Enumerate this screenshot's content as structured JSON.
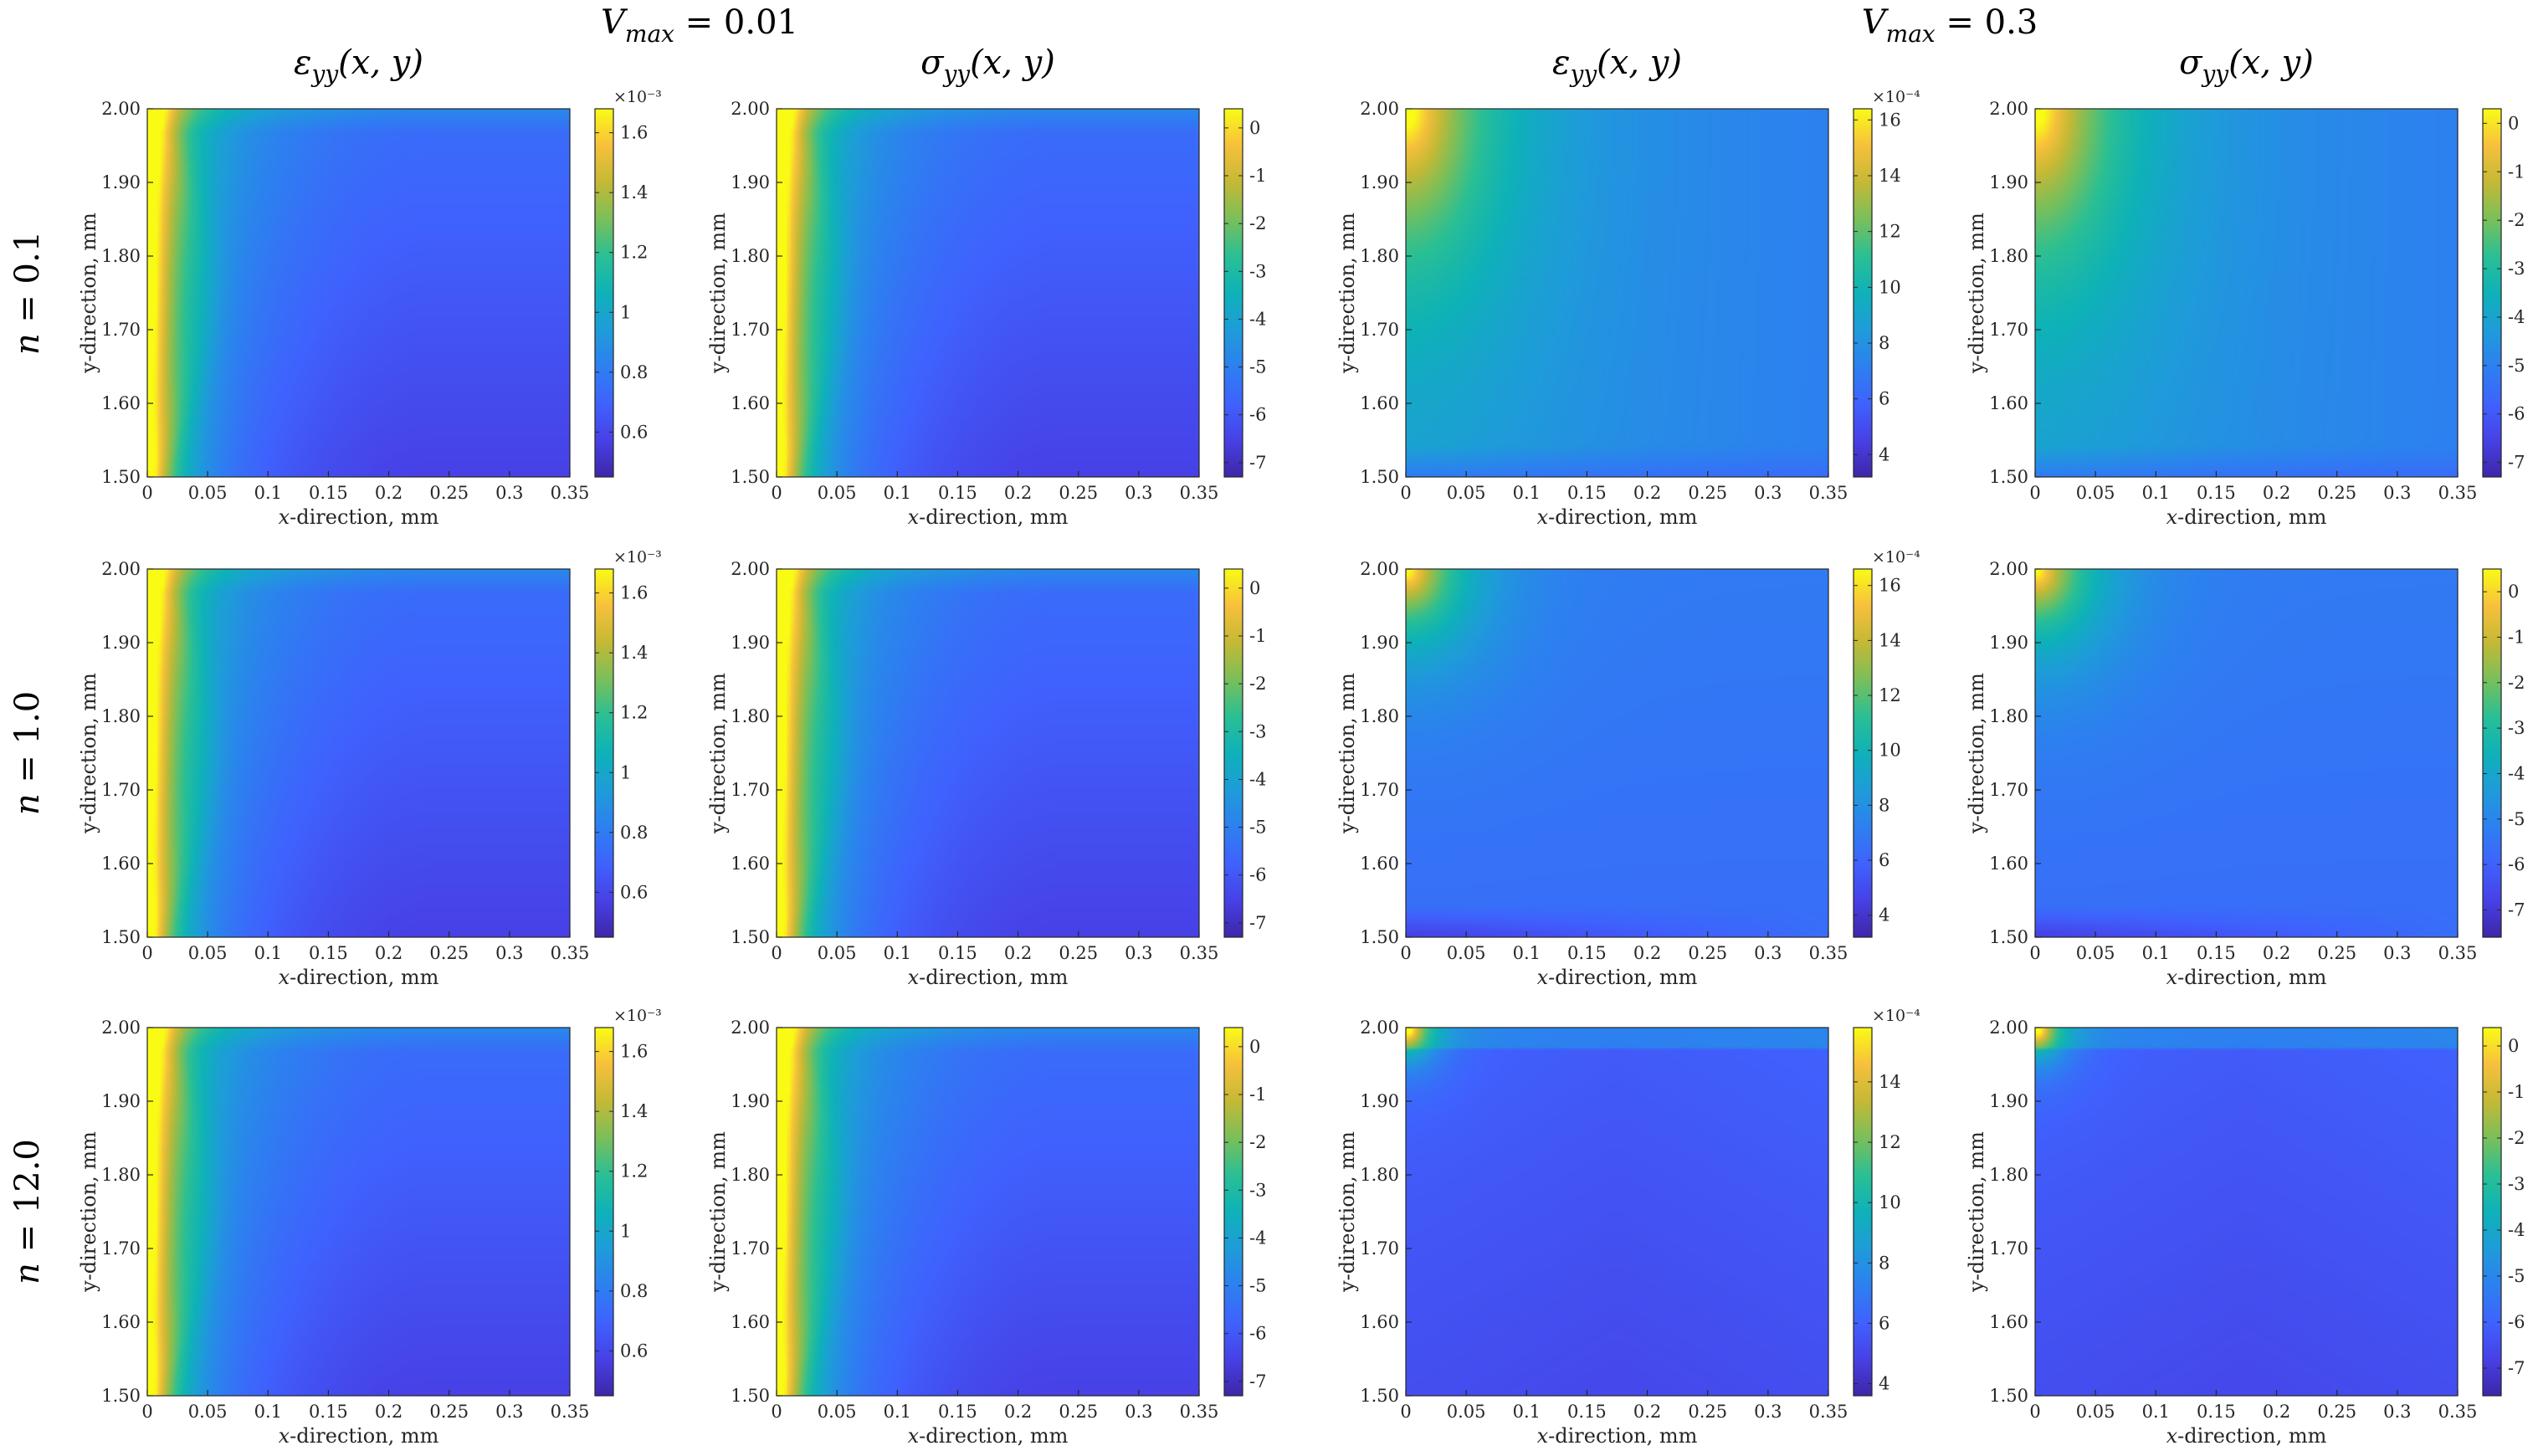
{
  "colormap": [
    "#3e26a8",
    "#4741e6",
    "#3f62fe",
    "#2d80f0",
    "#1e9cd9",
    "#0eb2b8",
    "#2abf94",
    "#7abf5a",
    "#c4b935",
    "#f7c03c",
    "#f9fb15"
  ],
  "chart_data": {
    "type": "heatmap",
    "group_headers": [
      {
        "label": "V_max = 0.01",
        "var": "V",
        "sub": "max",
        "value": "= 0.01"
      },
      {
        "label": "V_max = 0.3",
        "var": "V",
        "sub": "max",
        "value": "= 0.3"
      }
    ],
    "row_labels": [
      {
        "label": "n = 0.1",
        "var": "n",
        "value": "= 0.1"
      },
      {
        "label": "n = 1.0",
        "var": "n",
        "value": "= 1.0"
      },
      {
        "label": "n = 12.0",
        "var": "n",
        "value": "= 12.0"
      }
    ],
    "column_titles": [
      {
        "symbol": "ε",
        "sub": "yy",
        "args": "(x, y)"
      },
      {
        "symbol": "σ",
        "sub": "yy",
        "args": "(x, y)"
      },
      {
        "symbol": "ε",
        "sub": "yy",
        "args": "(x, y)"
      },
      {
        "symbol": "σ",
        "sub": "yy",
        "args": "(x, y)"
      }
    ],
    "xlabel_var": "x",
    "xlabel_rest": "-direction, mm",
    "ylabel": "y-direction, mm",
    "xlim": [
      0,
      0.35
    ],
    "ylim": [
      1.5,
      2.0
    ],
    "xticks": [
      "0",
      "0.05",
      "0.1",
      "0.15",
      "0.2",
      "0.25",
      "0.3",
      "0.35"
    ],
    "yticks": [
      "1.50",
      "1.60",
      "1.70",
      "1.80",
      "1.90",
      "2.00"
    ],
    "panels": [
      {
        "row": 0,
        "col": 0,
        "field": "strain",
        "model": "A",
        "crange": [
          0.45,
          1.68
        ],
        "cticks": [
          "0.6",
          "0.8",
          "1",
          "1.2",
          "1.4",
          "1.6"
        ],
        "ctickvals": [
          0.6,
          0.8,
          1,
          1.2,
          1.4,
          1.6
        ],
        "exponent": "×10⁻³"
      },
      {
        "row": 0,
        "col": 1,
        "field": "stress",
        "model": "A",
        "crange": [
          -7.3,
          0.4
        ],
        "cticks": [
          "-7",
          "-6",
          "-5",
          "-4",
          "-3",
          "-2",
          "-1",
          "0"
        ],
        "ctickvals": [
          -7,
          -6,
          -5,
          -4,
          -3,
          -2,
          -1,
          0
        ],
        "exponent": ""
      },
      {
        "row": 0,
        "col": 2,
        "field": "strain",
        "model": "B1",
        "crange": [
          3.2,
          16.4
        ],
        "cticks": [
          "4",
          "6",
          "8",
          "10",
          "12",
          "14",
          "16"
        ],
        "ctickvals": [
          4,
          6,
          8,
          10,
          12,
          14,
          16
        ],
        "exponent": "×10⁻⁴"
      },
      {
        "row": 0,
        "col": 3,
        "field": "stress",
        "model": "B1",
        "crange": [
          -7.3,
          0.3
        ],
        "cticks": [
          "-7",
          "-6",
          "-5",
          "-4",
          "-3",
          "-2",
          "-1",
          "0"
        ],
        "ctickvals": [
          -7,
          -6,
          -5,
          -4,
          -3,
          -2,
          -1,
          0
        ],
        "exponent": ""
      },
      {
        "row": 1,
        "col": 0,
        "field": "strain",
        "model": "A",
        "crange": [
          0.45,
          1.68
        ],
        "cticks": [
          "0.6",
          "0.8",
          "1",
          "1.2",
          "1.4",
          "1.6"
        ],
        "ctickvals": [
          0.6,
          0.8,
          1,
          1.2,
          1.4,
          1.6
        ],
        "exponent": "×10⁻³"
      },
      {
        "row": 1,
        "col": 1,
        "field": "stress",
        "model": "A",
        "crange": [
          -7.3,
          0.4
        ],
        "cticks": [
          "-7",
          "-6",
          "-5",
          "-4",
          "-3",
          "-2",
          "-1",
          "0"
        ],
        "ctickvals": [
          -7,
          -6,
          -5,
          -4,
          -3,
          -2,
          -1,
          0
        ],
        "exponent": ""
      },
      {
        "row": 1,
        "col": 2,
        "field": "strain",
        "model": "B2",
        "crange": [
          3.2,
          16.6
        ],
        "cticks": [
          "4",
          "6",
          "8",
          "10",
          "12",
          "14",
          "16"
        ],
        "ctickvals": [
          4,
          6,
          8,
          10,
          12,
          14,
          16
        ],
        "exponent": "×10⁻⁴"
      },
      {
        "row": 1,
        "col": 3,
        "field": "stress",
        "model": "B2",
        "crange": [
          -7.6,
          0.5
        ],
        "cticks": [
          "-7",
          "-6",
          "-5",
          "-4",
          "-3",
          "-2",
          "-1",
          "0"
        ],
        "ctickvals": [
          -7,
          -6,
          -5,
          -4,
          -3,
          -2,
          -1,
          0
        ],
        "exponent": ""
      },
      {
        "row": 2,
        "col": 0,
        "field": "strain",
        "model": "A",
        "crange": [
          0.45,
          1.68
        ],
        "cticks": [
          "0.6",
          "0.8",
          "1",
          "1.2",
          "1.4",
          "1.6"
        ],
        "ctickvals": [
          0.6,
          0.8,
          1,
          1.2,
          1.4,
          1.6
        ],
        "exponent": "×10⁻³"
      },
      {
        "row": 2,
        "col": 1,
        "field": "stress",
        "model": "A",
        "crange": [
          -7.3,
          0.4
        ],
        "cticks": [
          "-7",
          "-6",
          "-5",
          "-4",
          "-3",
          "-2",
          "-1",
          "0"
        ],
        "ctickvals": [
          -7,
          -6,
          -5,
          -4,
          -3,
          -2,
          -1,
          0
        ],
        "exponent": ""
      },
      {
        "row": 2,
        "col": 2,
        "field": "strain",
        "model": "B3",
        "crange": [
          3.6,
          15.8
        ],
        "cticks": [
          "4",
          "6",
          "8",
          "10",
          "12",
          "14"
        ],
        "ctickvals": [
          4,
          6,
          8,
          10,
          12,
          14
        ],
        "exponent": "×10⁻⁴"
      },
      {
        "row": 2,
        "col": 3,
        "field": "stress",
        "model": "B3",
        "crange": [
          -7.6,
          0.4
        ],
        "cticks": [
          "-7",
          "-6",
          "-5",
          "-4",
          "-3",
          "-2",
          "-1",
          "0"
        ],
        "ctickvals": [
          -7,
          -6,
          -5,
          -4,
          -3,
          -2,
          -1,
          0
        ],
        "exponent": ""
      }
    ]
  }
}
